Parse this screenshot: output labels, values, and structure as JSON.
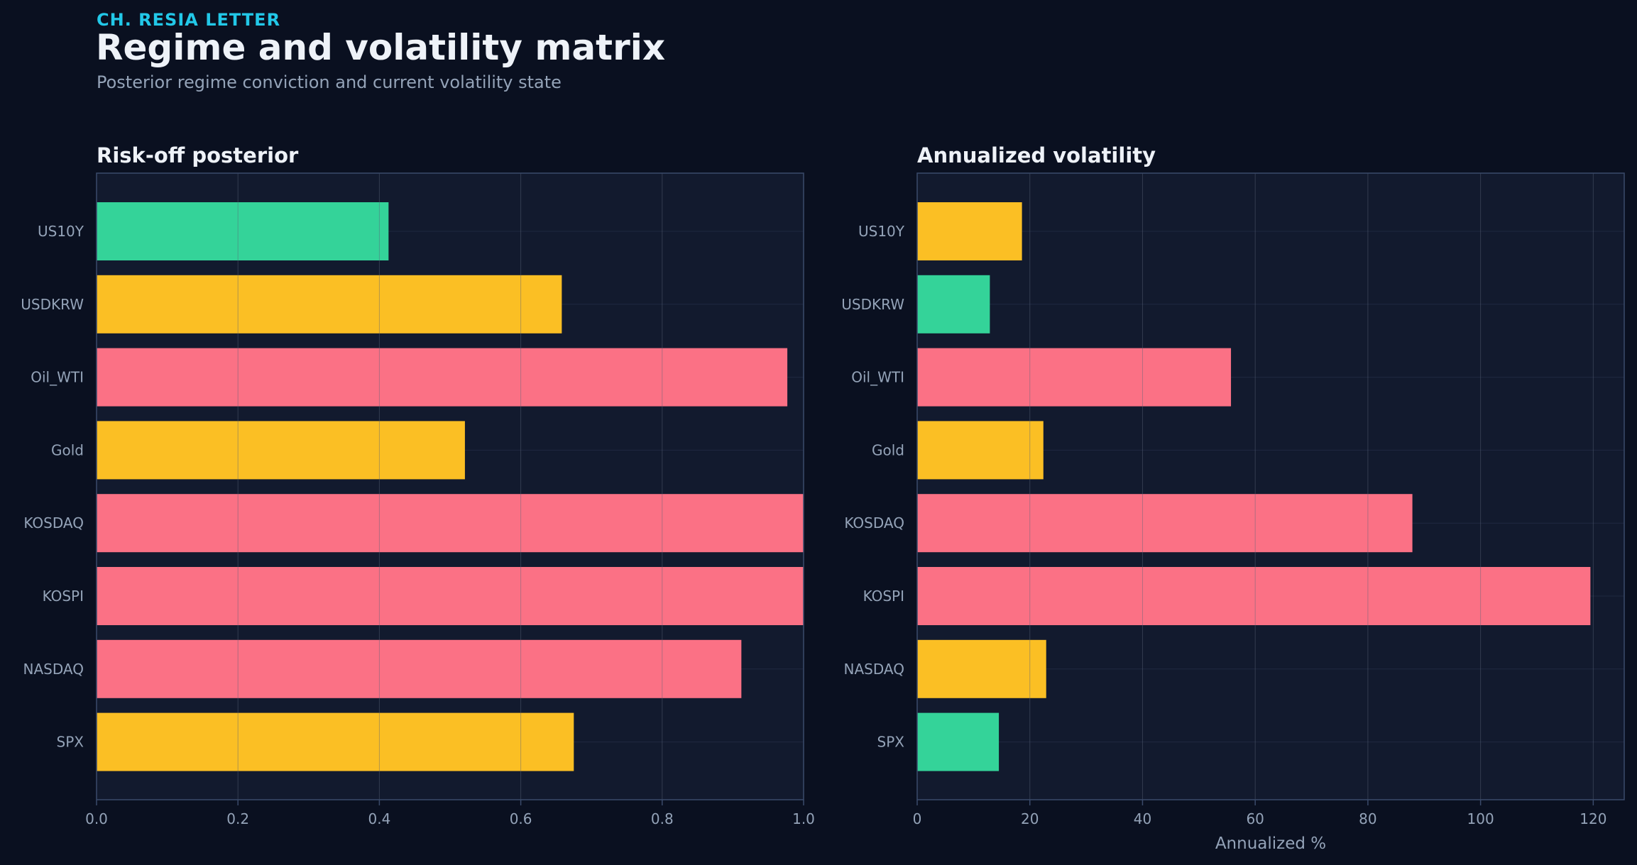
{
  "header": {
    "brand": "CH. RESIA LETTER",
    "title": "Regime and volatility matrix",
    "subtitle": "Posterior regime conviction and current volatility state"
  },
  "colors": {
    "background": "#0a1020",
    "plot_background": "#121a2e",
    "green": "#34d399",
    "amber": "#fbbf24",
    "red": "#fb7185",
    "axis_text": "#94a3b8",
    "title_text": "#eef2f8",
    "brand": "#22c8e8"
  },
  "chart_data": [
    {
      "type": "bar",
      "orientation": "horizontal",
      "title": "Risk-off posterior",
      "xlabel": "",
      "ylabel": "",
      "categories": [
        "US10Y",
        "USDKRW",
        "Oil_WTI",
        "Gold",
        "KOSDAQ",
        "KOSPI",
        "NASDAQ",
        "SPX"
      ],
      "values": [
        0.413,
        0.658,
        0.977,
        0.521,
        1.0,
        1.0,
        0.912,
        0.675
      ],
      "bar_colors": [
        "green",
        "amber",
        "red",
        "amber",
        "red",
        "red",
        "red",
        "amber"
      ],
      "xlim": [
        0,
        1.0
      ],
      "xticks": [
        "0.0",
        "0.2",
        "0.4",
        "0.6",
        "0.8",
        "1.0"
      ],
      "xtick_values": [
        0,
        0.2,
        0.4,
        0.6,
        0.8,
        1.0
      ],
      "grid": true
    },
    {
      "type": "bar",
      "orientation": "horizontal",
      "title": "Annualized volatility",
      "xlabel": "Annualized %",
      "ylabel": "",
      "categories": [
        "US10Y",
        "USDKRW",
        "Oil_WTI",
        "Gold",
        "KOSDAQ",
        "KOSPI",
        "NASDAQ",
        "SPX"
      ],
      "values": [
        18.6,
        12.9,
        55.7,
        22.4,
        87.9,
        119.5,
        22.9,
        14.5
      ],
      "bar_colors": [
        "amber",
        "green",
        "red",
        "amber",
        "red",
        "red",
        "amber",
        "green"
      ],
      "xlim": [
        0,
        125.5
      ],
      "xticks": [
        "0",
        "20",
        "40",
        "60",
        "80",
        "100",
        "120"
      ],
      "xtick_values": [
        0,
        20,
        40,
        60,
        80,
        100,
        120
      ],
      "grid": true
    }
  ]
}
